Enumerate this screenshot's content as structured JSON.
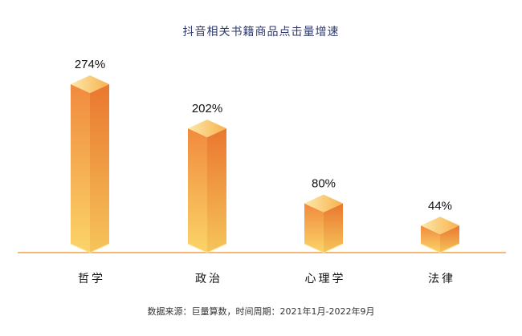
{
  "chart_data": {
    "type": "bar",
    "title": "抖音相关书籍商品点击量增速",
    "categories": [
      "哲学",
      "政治",
      "心理学",
      "法律"
    ],
    "values": [
      274,
      202,
      80,
      44
    ],
    "data_labels": [
      "274%",
      "202%",
      "80%",
      "44%"
    ],
    "value_unit": "%",
    "ylim": [
      0,
      300
    ],
    "grid": false,
    "legend": "none",
    "source": "数据来源：巨量算数，时间周期：2021年1月-2022年9月"
  },
  "colors": {
    "bar_top": "#f08a3e",
    "bar_bottom": "#fbd468",
    "cap_light": "#fde39a",
    "cap_dark": "#f7b24f",
    "baseline": "#f0a24a",
    "title_text": "#2f3a68"
  }
}
